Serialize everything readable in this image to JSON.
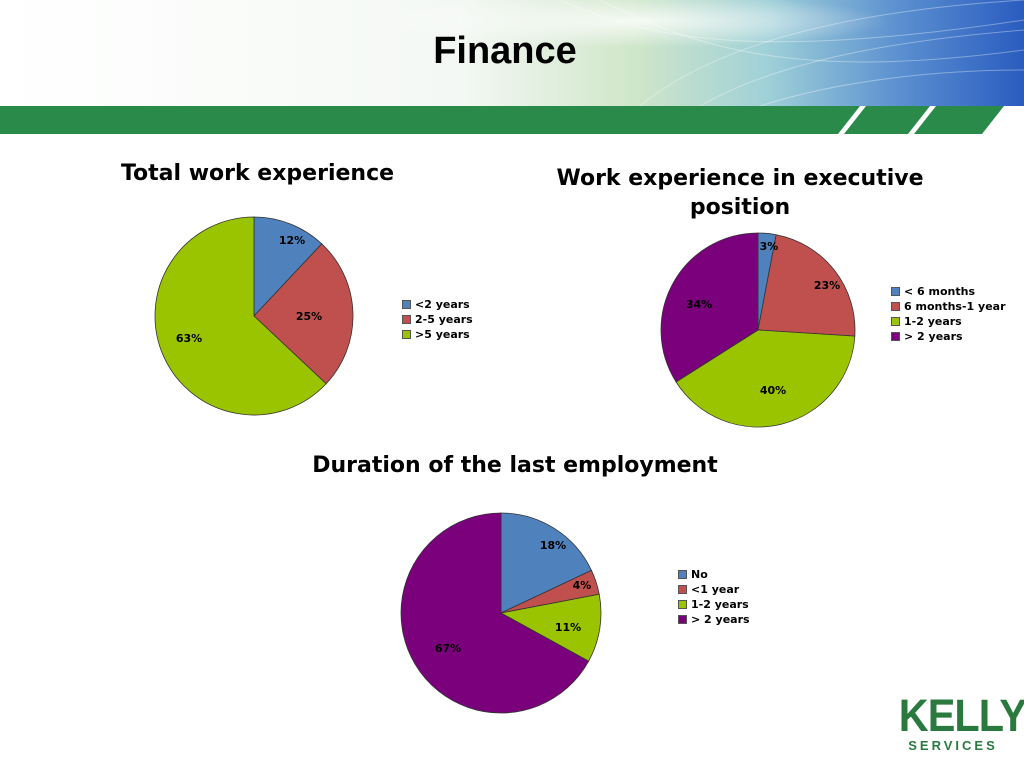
{
  "slide": {
    "title": "Finance"
  },
  "colors": {
    "header_green": "#2a8a4a",
    "slice_blue": "#4f81bd",
    "slice_red": "#c0504d",
    "slice_green": "#9bc400",
    "slice_purple": "#7b007b",
    "brand_green": "#2a7a40"
  },
  "logo": {
    "word": "KELLY",
    "sub": "SERVICES"
  },
  "chart_data": [
    {
      "type": "pie",
      "title": "Total work experience",
      "categories": [
        "<2 years",
        "2-5 years",
        ">5 years"
      ],
      "values": [
        12,
        25,
        63
      ],
      "labels": [
        "12%",
        "25%",
        "63%"
      ],
      "colors": [
        "#4f81bd",
        "#c0504d",
        "#9bc400"
      ],
      "legend_position": "right"
    },
    {
      "type": "pie",
      "title": "Work experience in executive position",
      "categories": [
        "< 6 months",
        "6 months-1 year",
        "1-2 years",
        "> 2 years"
      ],
      "values": [
        3,
        23,
        40,
        34
      ],
      "labels": [
        "3%",
        "23%",
        "40%",
        "34%"
      ],
      "colors": [
        "#4f81bd",
        "#c0504d",
        "#9bc400",
        "#7b007b"
      ],
      "legend_position": "right"
    },
    {
      "type": "pie",
      "title": "Duration of the last employment",
      "categories": [
        "No",
        "<1 year",
        "1-2 years",
        "> 2 years"
      ],
      "values": [
        18,
        4,
        11,
        67
      ],
      "labels": [
        "18%",
        "4%",
        "11%",
        "67%"
      ],
      "colors": [
        "#4f81bd",
        "#c0504d",
        "#9bc400",
        "#7b007b"
      ],
      "legend_position": "right"
    }
  ]
}
